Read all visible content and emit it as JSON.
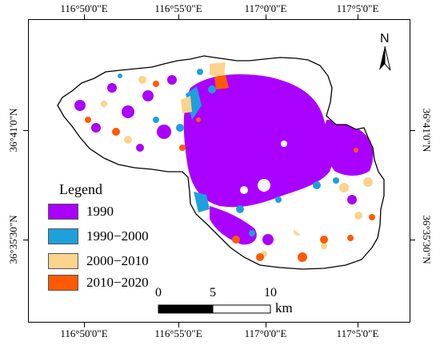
{
  "coordinates": {
    "top": [
      "116°50'0\"E",
      "116°55'0\"E",
      "117°0'0\"E",
      "117°5'0\"E"
    ],
    "bottom": [
      "116°50'0\"E",
      "116°55'0\"E",
      "117°0'0\"E",
      "117°5'0\"E"
    ],
    "left": [
      "36°41'0\"N",
      "36°35'30\"N"
    ],
    "right": [
      "36°41'0\"N",
      "36°35'30\"N"
    ]
  },
  "north_arrow": {
    "label": "N"
  },
  "legend": {
    "title": "Legend",
    "items": [
      {
        "label": "1990",
        "color": "#aa00ff"
      },
      {
        "label": "1990−2000",
        "color": "#1ea0dc"
      },
      {
        "label": "2000−2010",
        "color": "#fcd38d"
      },
      {
        "label": "2010−2020",
        "color": "#ff5a00"
      }
    ]
  },
  "scale_bar": {
    "ticks": [
      "0",
      "5",
      "10"
    ],
    "unit": "km"
  },
  "colors": {
    "boundary": "#000000",
    "background": "#ffffff"
  }
}
